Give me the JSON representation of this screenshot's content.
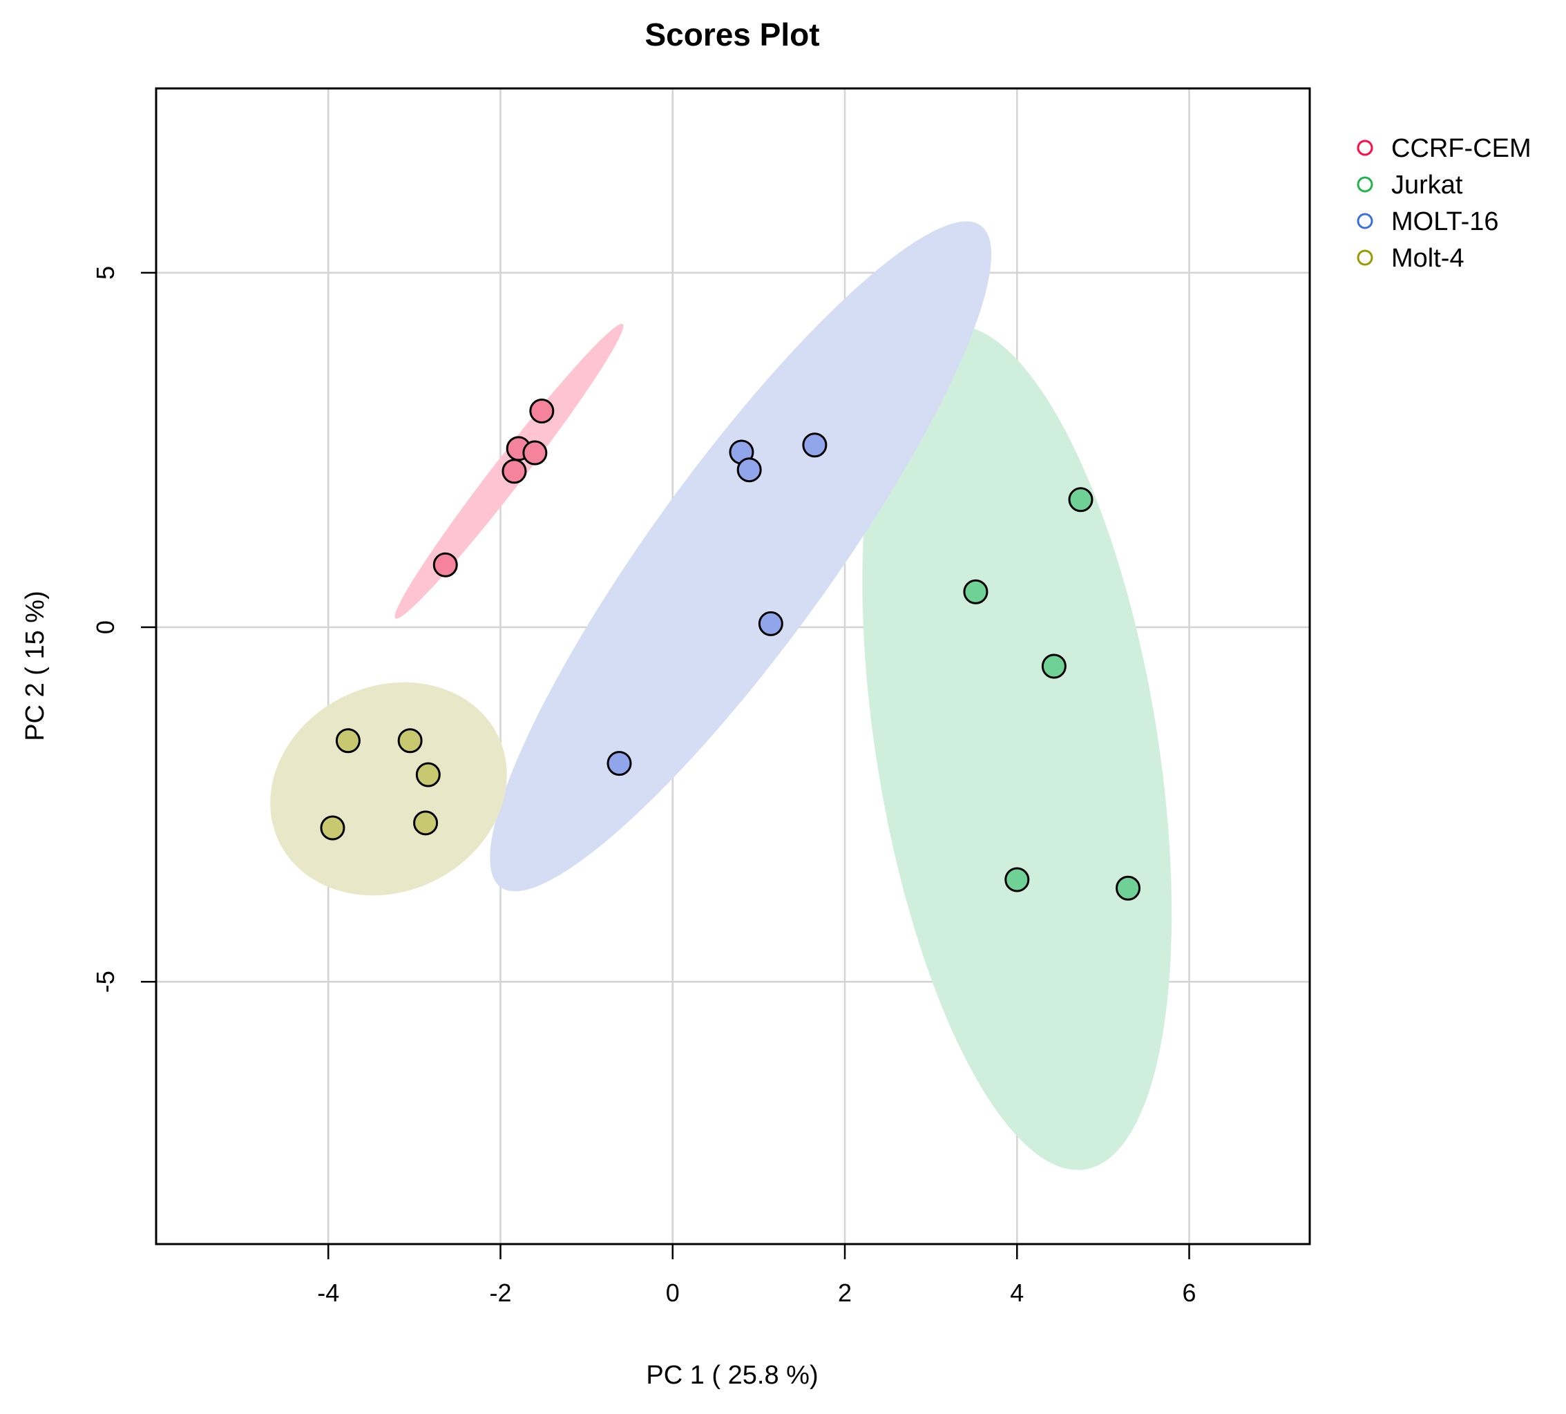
{
  "chart_data": {
    "type": "scatter",
    "title": "Scores Plot",
    "xlabel": "PC 1 ( 25.8 %)",
    "ylabel": "PC 2 ( 15 %)",
    "xlim": [
      -6,
      7.4
    ],
    "ylim": [
      -8.7,
      7.6
    ],
    "xticks": [
      -4,
      -2,
      0,
      2,
      4,
      6
    ],
    "xtick_labels": [
      "-4",
      "-2",
      "0",
      "2",
      "4",
      "6"
    ],
    "yticks": [
      -5,
      0,
      5
    ],
    "ytick_labels": [
      "-5",
      "0",
      "5"
    ],
    "grid": true,
    "legend_position": "top-right outside",
    "series": [
      {
        "name": "CCRF-CEM",
        "color": "#ff0a47",
        "fill": "#f4839b",
        "ellipse_fill": "#ffc4d1",
        "points": [
          [
            -1.52,
            3.05
          ],
          [
            -1.79,
            2.52
          ],
          [
            -1.6,
            2.46
          ],
          [
            -1.84,
            2.2
          ],
          [
            -2.64,
            0.88
          ]
        ],
        "ellipse": {
          "cx": -1.9,
          "cy": 2.2,
          "rx": 2.46,
          "ry": 0.19,
          "angle_deg": 57.6
        }
      },
      {
        "name": "Jurkat",
        "color": "#22b24b",
        "fill": "#6fd195",
        "ellipse_fill": "#cfeedb",
        "points": [
          [
            4.74,
            1.8
          ],
          [
            3.52,
            0.5
          ],
          [
            4.43,
            -0.55
          ],
          [
            4.0,
            -3.56
          ],
          [
            5.29,
            -3.68
          ]
        ],
        "ellipse": {
          "cx": 4.0,
          "cy": -1.7,
          "rx": 6.0,
          "ry": 1.64,
          "angle_deg": -82.7
        }
      },
      {
        "name": "MOLT-16",
        "color": "#3b6fde",
        "fill": "#91a5ea",
        "ellipse_fill": "#d5ddf5",
        "points": [
          [
            1.65,
            2.57
          ],
          [
            0.8,
            2.47
          ],
          [
            0.89,
            2.22
          ],
          [
            1.14,
            0.05
          ],
          [
            -0.62,
            -1.92
          ]
        ],
        "ellipse": {
          "cx": 0.79,
          "cy": 1.0,
          "rx": 5.44,
          "ry": 1.1,
          "angle_deg": 59.6
        }
      },
      {
        "name": "Molt-4",
        "color": "#999900",
        "fill": "#c8c871",
        "ellipse_fill": "#e8e8c8",
        "points": [
          [
            -3.77,
            -1.6
          ],
          [
            -3.05,
            -1.6
          ],
          [
            -2.84,
            -2.08
          ],
          [
            -3.95,
            -2.83
          ],
          [
            -2.87,
            -2.76
          ]
        ],
        "ellipse": {
          "cx": -3.3,
          "cy": -2.28,
          "rx": 1.55,
          "ry": 1.32,
          "angle_deg": 62
        }
      }
    ]
  }
}
